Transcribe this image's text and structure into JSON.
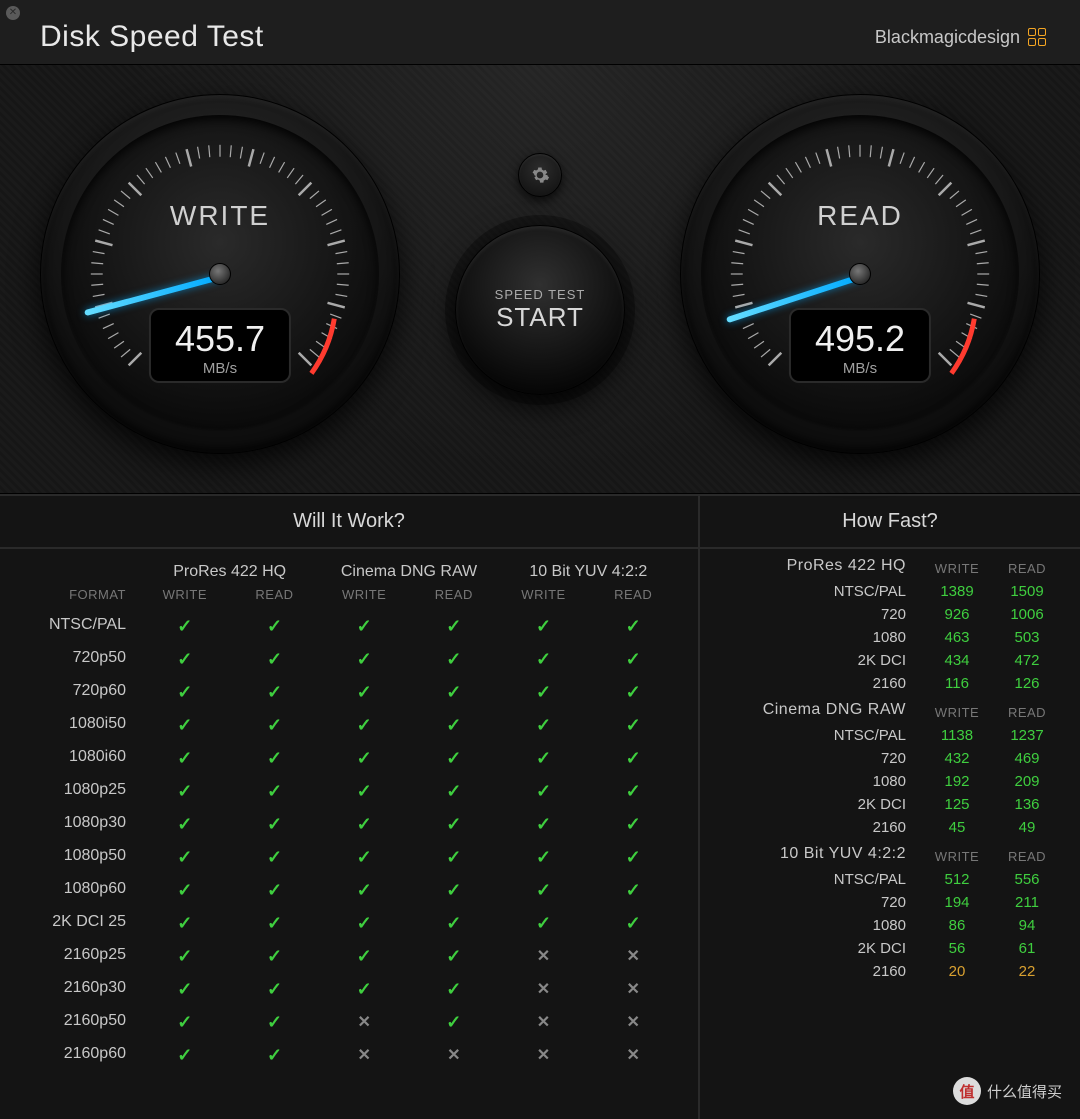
{
  "app": {
    "title": "Disk Speed Test",
    "brand": "Blackmagicdesign"
  },
  "center": {
    "start_small": "SPEED TEST",
    "start_big": "START"
  },
  "write_gauge": {
    "label": "WRITE",
    "value": "455.7",
    "unit": "MB/s",
    "needle_angle_deg": 165,
    "needle_color": "#1fb6ff",
    "redzone_color": "#ff3b2f"
  },
  "read_gauge": {
    "label": "READ",
    "value": "495.2",
    "unit": "MB/s",
    "needle_angle_deg": 162,
    "needle_color": "#1fb6ff",
    "redzone_color": "#ff3b2f"
  },
  "colors": {
    "background": "#1e1e1e",
    "panel_bg": "#141414",
    "text": "#d8d8d8",
    "muted": "#777777",
    "ok": "#3fcf3f",
    "warn": "#d8a030",
    "fail": "#888888",
    "accent": "#1fb6ff"
  },
  "will_it_work": {
    "title": "Will It Work?",
    "format_head": "FORMAT",
    "sub_write": "WRITE",
    "sub_read": "READ",
    "groups": [
      "ProRes 422 HQ",
      "Cinema DNG RAW",
      "10 Bit YUV 4:2:2"
    ],
    "formats": [
      "NTSC/PAL",
      "720p50",
      "720p60",
      "1080i50",
      "1080i60",
      "1080p25",
      "1080p30",
      "1080p50",
      "1080p60",
      "2K DCI 25",
      "2160p25",
      "2160p30",
      "2160p50",
      "2160p60"
    ],
    "results": [
      [
        true,
        true,
        true,
        true,
        true,
        true
      ],
      [
        true,
        true,
        true,
        true,
        true,
        true
      ],
      [
        true,
        true,
        true,
        true,
        true,
        true
      ],
      [
        true,
        true,
        true,
        true,
        true,
        true
      ],
      [
        true,
        true,
        true,
        true,
        true,
        true
      ],
      [
        true,
        true,
        true,
        true,
        true,
        true
      ],
      [
        true,
        true,
        true,
        true,
        true,
        true
      ],
      [
        true,
        true,
        true,
        true,
        true,
        true
      ],
      [
        true,
        true,
        true,
        true,
        true,
        true
      ],
      [
        true,
        true,
        true,
        true,
        true,
        true
      ],
      [
        true,
        true,
        true,
        true,
        false,
        false
      ],
      [
        true,
        true,
        true,
        true,
        false,
        false
      ],
      [
        true,
        true,
        false,
        true,
        false,
        false
      ],
      [
        true,
        true,
        false,
        false,
        false,
        false
      ]
    ]
  },
  "how_fast": {
    "title": "How Fast?",
    "head_write": "WRITE",
    "head_read": "READ",
    "sections": [
      {
        "name": "ProRes 422 HQ",
        "rows": [
          {
            "label": "NTSC/PAL",
            "write": 1389,
            "read": 1509,
            "w_ok": true,
            "r_ok": true
          },
          {
            "label": "720",
            "write": 926,
            "read": 1006,
            "w_ok": true,
            "r_ok": true
          },
          {
            "label": "1080",
            "write": 463,
            "read": 503,
            "w_ok": true,
            "r_ok": true
          },
          {
            "label": "2K DCI",
            "write": 434,
            "read": 472,
            "w_ok": true,
            "r_ok": true
          },
          {
            "label": "2160",
            "write": 116,
            "read": 126,
            "w_ok": true,
            "r_ok": true
          }
        ]
      },
      {
        "name": "Cinema DNG RAW",
        "rows": [
          {
            "label": "NTSC/PAL",
            "write": 1138,
            "read": 1237,
            "w_ok": true,
            "r_ok": true
          },
          {
            "label": "720",
            "write": 432,
            "read": 469,
            "w_ok": true,
            "r_ok": true
          },
          {
            "label": "1080",
            "write": 192,
            "read": 209,
            "w_ok": true,
            "r_ok": true
          },
          {
            "label": "2K DCI",
            "write": 125,
            "read": 136,
            "w_ok": true,
            "r_ok": true
          },
          {
            "label": "2160",
            "write": 45,
            "read": 49,
            "w_ok": true,
            "r_ok": true
          }
        ]
      },
      {
        "name": "10 Bit YUV 4:2:2",
        "rows": [
          {
            "label": "NTSC/PAL",
            "write": 512,
            "read": 556,
            "w_ok": true,
            "r_ok": true
          },
          {
            "label": "720",
            "write": 194,
            "read": 211,
            "w_ok": true,
            "r_ok": true
          },
          {
            "label": "1080",
            "write": 86,
            "read": 94,
            "w_ok": true,
            "r_ok": true
          },
          {
            "label": "2K DCI",
            "write": 56,
            "read": 61,
            "w_ok": true,
            "r_ok": true
          },
          {
            "label": "2160",
            "write": 20,
            "read": 22,
            "w_ok": false,
            "r_ok": false
          }
        ]
      }
    ]
  },
  "watermark": {
    "badge": "值",
    "text": "什么值得买"
  }
}
